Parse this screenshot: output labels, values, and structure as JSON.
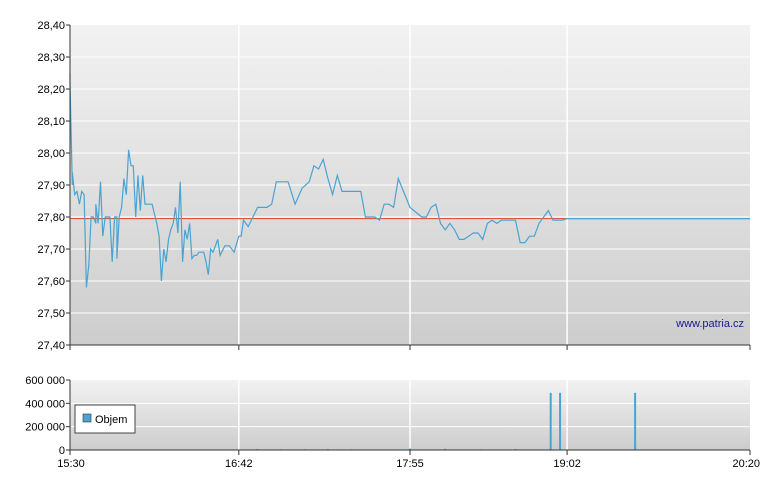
{
  "watermark": "www.patria.cz",
  "colors": {
    "price_line": "#4aa3d0",
    "reference_line": "#e0402a",
    "volume_bars": "#4aa3d0",
    "plot_bg_top": "#f2f2f2",
    "plot_bg_bottom": "#cdcdcd",
    "gridline": "#ffffff",
    "legend_swatch": "#4aa3d0"
  },
  "chart_data": [
    {
      "type": "line",
      "name": "price",
      "x_unit": "time",
      "xlim": [
        "15:30",
        "20:20"
      ],
      "x_tick_labels": [
        "15:30",
        "16:42",
        "17:55",
        "19:02",
        "20:20"
      ],
      "ylim": [
        27.4,
        28.4
      ],
      "y_tick_labels": [
        "28,40",
        "28,30",
        "28,20",
        "28,10",
        "28,00",
        "27,90",
        "27,80",
        "27,70",
        "27,60",
        "27,50",
        "27,40"
      ],
      "reference_line": 27.795,
      "series": [
        {
          "x": [
            "15:30",
            "15:30",
            "15:31",
            "15:31",
            "15:32",
            "15:33",
            "15:34",
            "15:35",
            "15:36",
            "15:37",
            "15:38",
            "15:39",
            "15:40",
            "15:41",
            "15:41",
            "15:42",
            "15:43",
            "15:44",
            "15:45",
            "15:46",
            "15:47",
            "15:48",
            "15:49",
            "15:50",
            "15:50",
            "15:51",
            "15:52",
            "15:53",
            "15:54",
            "15:55",
            "15:56",
            "15:57",
            "15:58",
            "15:59",
            "16:00",
            "16:01",
            "16:02",
            "16:03",
            "16:04",
            "16:05",
            "16:06",
            "16:07",
            "16:08",
            "16:09",
            "16:10",
            "16:11",
            "16:12",
            "16:13",
            "16:14",
            "16:15",
            "16:16",
            "16:17",
            "16:18",
            "16:19",
            "16:20",
            "16:21",
            "16:22",
            "16:23",
            "16:24",
            "16:25",
            "16:26",
            "16:27",
            "16:28",
            "16:29",
            "16:30",
            "16:31",
            "16:32",
            "16:33",
            "16:34",
            "16:36",
            "16:38",
            "16:40",
            "16:42",
            "16:43",
            "16:44",
            "16:46",
            "16:48",
            "16:50",
            "16:52",
            "16:54",
            "16:56",
            "16:58",
            "17:00",
            "17:03",
            "17:06",
            "17:09",
            "17:12",
            "17:14",
            "17:16",
            "17:18",
            "17:20",
            "17:22",
            "17:24",
            "17:26",
            "17:28",
            "17:30",
            "17:32",
            "17:34",
            "17:36",
            "17:38",
            "17:40",
            "17:42",
            "17:44",
            "17:46",
            "17:48",
            "17:50",
            "17:55",
            "18:00",
            "18:02",
            "18:04",
            "18:06",
            "18:08",
            "18:10",
            "18:12",
            "18:14",
            "18:16",
            "18:18",
            "18:20",
            "18:22",
            "18:24",
            "18:26",
            "18:28",
            "18:30",
            "18:32",
            "18:34",
            "18:36",
            "18:38",
            "18:40",
            "18:42",
            "18:44",
            "18:46",
            "18:48",
            "18:50",
            "18:52",
            "18:54",
            "18:56",
            "18:58",
            "19:00",
            "19:02",
            "20:20"
          ],
          "y": [
            28.25,
            28.22,
            27.9,
            27.94,
            27.87,
            27.88,
            27.84,
            27.88,
            27.87,
            27.58,
            27.65,
            27.8,
            27.8,
            27.78,
            27.84,
            27.78,
            27.91,
            27.74,
            27.8,
            27.8,
            27.8,
            27.66,
            27.8,
            27.8,
            27.67,
            27.8,
            27.83,
            27.92,
            27.87,
            28.01,
            27.96,
            27.96,
            27.8,
            27.93,
            27.82,
            27.93,
            27.84,
            27.84,
            27.84,
            27.84,
            27.81,
            27.78,
            27.74,
            27.6,
            27.7,
            27.66,
            27.73,
            27.76,
            27.78,
            27.83,
            27.75,
            27.91,
            27.66,
            27.76,
            27.73,
            27.78,
            27.67,
            27.68,
            27.68,
            27.69,
            27.69,
            27.69,
            27.66,
            27.62,
            27.7,
            27.69,
            27.71,
            27.73,
            27.68,
            27.71,
            27.71,
            27.69,
            27.74,
            27.74,
            27.79,
            27.77,
            27.8,
            27.83,
            27.83,
            27.83,
            27.84,
            27.91,
            27.91,
            27.91,
            27.84,
            27.89,
            27.91,
            27.96,
            27.95,
            27.98,
            27.92,
            27.87,
            27.93,
            27.88,
            27.88,
            27.88,
            27.88,
            27.88,
            27.8,
            27.8,
            27.8,
            27.79,
            27.84,
            27.84,
            27.83,
            27.92,
            27.83,
            27.8,
            27.8,
            27.83,
            27.84,
            27.78,
            27.76,
            27.78,
            27.76,
            27.73,
            27.73,
            27.74,
            27.75,
            27.75,
            27.73,
            27.78,
            27.79,
            27.78,
            27.79,
            27.79,
            27.79,
            27.79,
            27.72,
            27.72,
            27.74,
            27.74,
            27.78,
            27.8,
            27.82,
            27.79,
            27.79,
            27.79,
            27.795,
            27.795
          ]
        }
      ]
    },
    {
      "type": "bar",
      "name": "volume",
      "xlim": [
        "15:30",
        "20:20"
      ],
      "ylim": [
        0,
        600000
      ],
      "y_tick_labels": [
        "600 000",
        "400 000",
        "200 000",
        "0"
      ],
      "legend": {
        "label": "Objem",
        "position": "left"
      },
      "series": [
        {
          "name": "Objem",
          "x": [
            "16:50",
            "17:00",
            "17:10",
            "17:20",
            "17:30",
            "17:40",
            "17:55",
            "18:10",
            "18:25",
            "18:40",
            "18:55",
            "18:57",
            "18:59",
            "19:31"
          ],
          "values": [
            8000,
            6000,
            7000,
            8000,
            6000,
            5000,
            12000,
            10000,
            6000,
            8000,
            490000,
            4000,
            490000,
            490000
          ]
        }
      ]
    }
  ]
}
